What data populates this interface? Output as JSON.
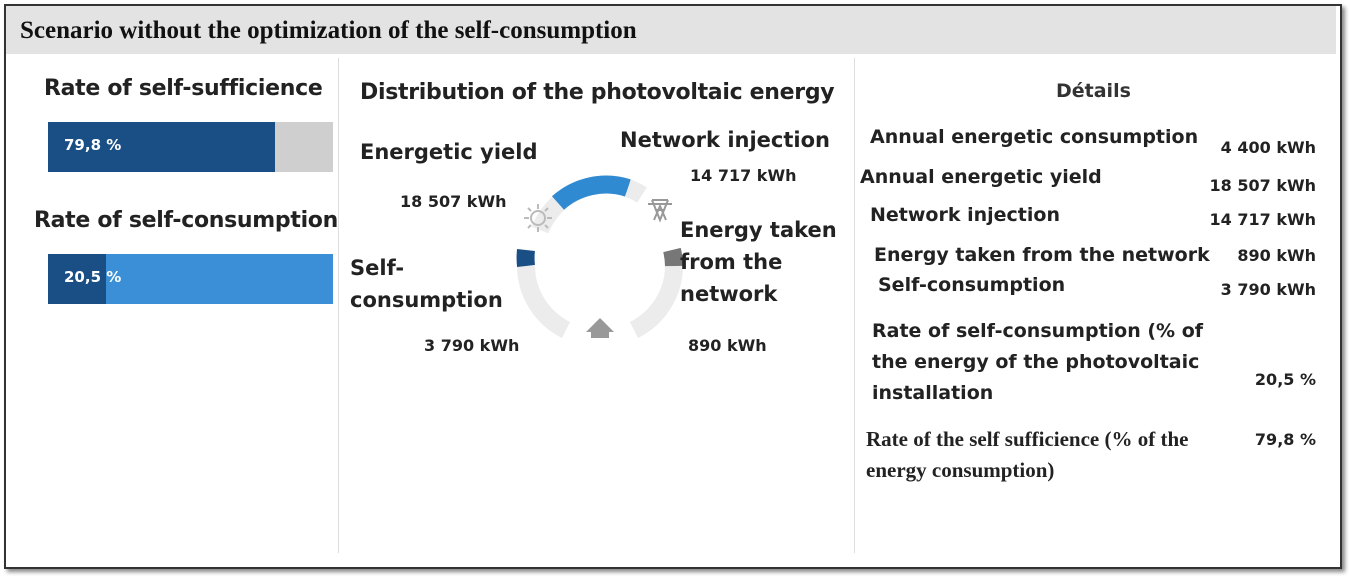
{
  "header": {
    "title": "Scenario without the optimization of the self-consumption"
  },
  "left": {
    "bars": [
      {
        "title": "Rate of self-sufficience",
        "value": 79.8,
        "label": "79,8 %"
      },
      {
        "title": "Rate of self-consumption",
        "value": 20.5,
        "label": "20,5 %"
      }
    ]
  },
  "middle": {
    "title": "Distribution of the photovoltaic energy",
    "items": [
      {
        "label": "Energetic yield",
        "value": "18 507 kWh"
      },
      {
        "label": "Network injection",
        "value": "14 717 kWh"
      },
      {
        "label": "Self-consumption",
        "value": "3 790 kWh"
      },
      {
        "label": "Energy taken from the network",
        "value": "890 kWh"
      }
    ]
  },
  "details": {
    "title": "Détails",
    "rows": [
      [
        "Annual energetic consumption",
        "4 400 kWh"
      ],
      [
        "Annual energetic yield",
        "18 507 kWh"
      ],
      [
        "Network injection",
        "14 717 kWh"
      ],
      [
        "Energy taken from the network",
        "890 kWh"
      ],
      [
        "Self-consumption",
        "3 790 kWh"
      ],
      [
        "Rate of self-consumption (% of the energy of the photovoltaic installation",
        "20,5 %"
      ],
      [
        "Rate of the self sufficience (% of the energy consumption)",
        "79,8 %"
      ]
    ]
  }
}
